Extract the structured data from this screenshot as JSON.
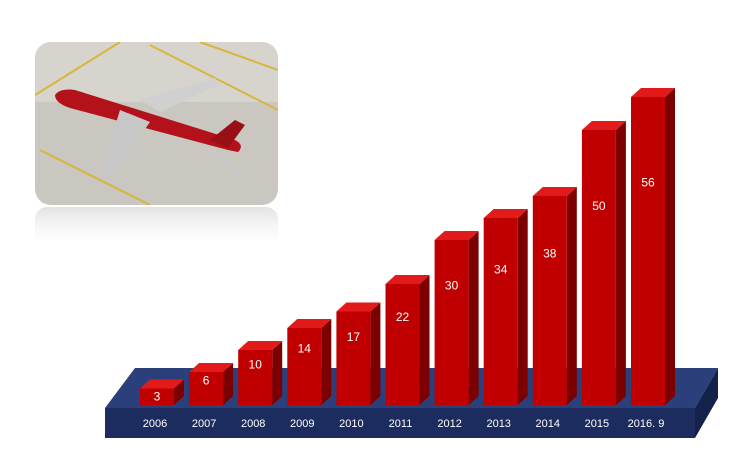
{
  "chart_data": {
    "type": "bar3d",
    "categories": [
      "2006",
      "2007",
      "2008",
      "2009",
      "2010",
      "2011",
      "2012",
      "2013",
      "2014",
      "2015",
      "2016. 9"
    ],
    "values": [
      3,
      6,
      10,
      14,
      17,
      22,
      30,
      34,
      38,
      50,
      56
    ],
    "color": "#c00000"
  }
}
